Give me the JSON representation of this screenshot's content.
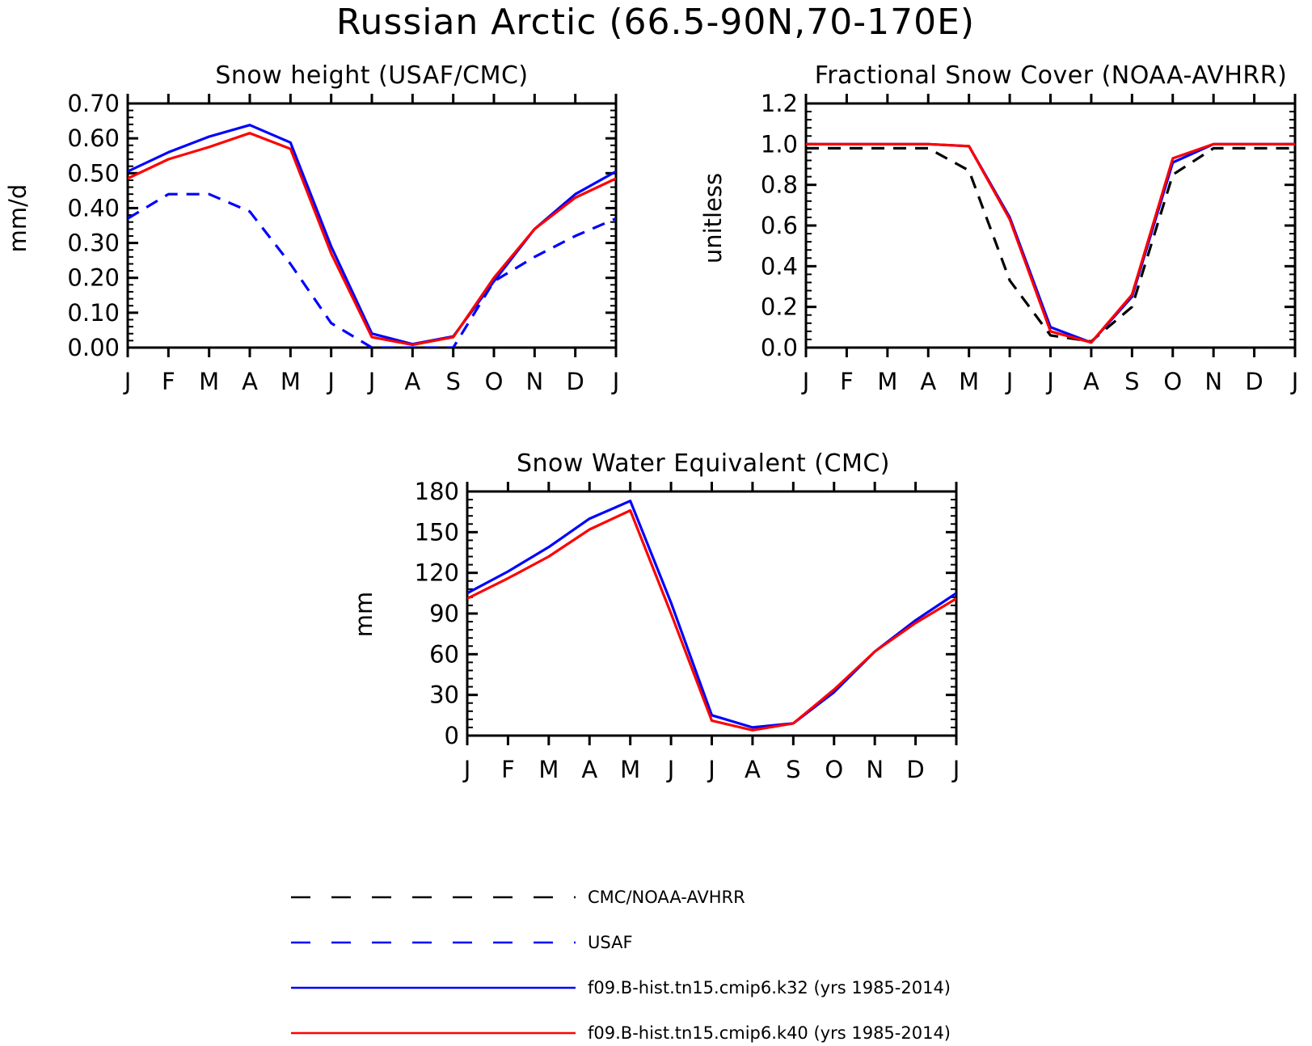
{
  "figure": {
    "title": "Russian Arctic (66.5-90N,70-170E)"
  },
  "legend": [
    {
      "label": "CMC/NOAA-AVHRR",
      "color": "#000000",
      "style": "dashed"
    },
    {
      "label": "USAF",
      "color": "#0000ff",
      "style": "dashed"
    },
    {
      "label": "f09.B-hist.tn15.cmip6.k32 (yrs 1985-2014)",
      "color": "#0000ff",
      "style": "solid"
    },
    {
      "label": "f09.B-hist.tn15.cmip6.k40 (yrs 1985-2014)",
      "color": "#ff0000",
      "style": "solid"
    }
  ],
  "chart_data": [
    {
      "type": "line",
      "title": "Snow height (USAF/CMC)",
      "xlabel": "",
      "ylabel": "mm/d",
      "categories": [
        "J",
        "F",
        "M",
        "A",
        "M",
        "J",
        "J",
        "A",
        "S",
        "O",
        "N",
        "D",
        "J"
      ],
      "ylim": [
        0,
        0.7
      ],
      "yticks": [
        "0.00",
        "0.10",
        "0.20",
        "0.30",
        "0.40",
        "0.50",
        "0.60",
        "0.70"
      ],
      "series": [
        {
          "name": "USAF",
          "color": "#0000ff",
          "style": "dashed",
          "values": [
            0.37,
            0.44,
            0.44,
            0.39,
            0.24,
            0.07,
            0.0,
            0.0,
            0.0,
            0.19,
            0.26,
            0.32,
            0.37
          ]
        },
        {
          "name": "f09.B-hist.tn15.cmip6.k32 (yrs 1985-2014)",
          "color": "#0000ff",
          "style": "solid",
          "values": [
            0.505,
            0.56,
            0.605,
            0.638,
            0.588,
            0.29,
            0.04,
            0.01,
            0.032,
            0.19,
            0.34,
            0.44,
            0.505
          ]
        },
        {
          "name": "f09.B-hist.tn15.cmip6.k40 (yrs 1985-2014)",
          "color": "#ff0000",
          "style": "solid",
          "values": [
            0.485,
            0.54,
            0.575,
            0.615,
            0.57,
            0.27,
            0.03,
            0.008,
            0.03,
            0.2,
            0.34,
            0.43,
            0.485
          ]
        }
      ]
    },
    {
      "type": "line",
      "title": "Fractional Snow Cover (NOAA-AVHRR)",
      "xlabel": "",
      "ylabel": "unitless",
      "categories": [
        "J",
        "F",
        "M",
        "A",
        "M",
        "J",
        "J",
        "A",
        "S",
        "O",
        "N",
        "D",
        "J"
      ],
      "ylim": [
        0,
        1.2
      ],
      "yticks": [
        "0.0",
        "0.2",
        "0.4",
        "0.6",
        "0.8",
        "1.0",
        "1.2"
      ],
      "series": [
        {
          "name": "CMC/NOAA-AVHRR",
          "color": "#000000",
          "style": "dashed",
          "values": [
            0.98,
            0.98,
            0.98,
            0.98,
            0.87,
            0.33,
            0.06,
            0.03,
            0.2,
            0.85,
            0.98,
            0.98,
            0.98
          ]
        },
        {
          "name": "f09.B-hist.tn15.cmip6.k32 (yrs 1985-2014)",
          "color": "#0000ff",
          "style": "solid",
          "values": [
            1.0,
            1.0,
            1.0,
            1.0,
            0.99,
            0.64,
            0.1,
            0.025,
            0.25,
            0.91,
            1.0,
            1.0,
            1.0
          ]
        },
        {
          "name": "f09.B-hist.tn15.cmip6.k40 (yrs 1985-2014)",
          "color": "#ff0000",
          "style": "solid",
          "values": [
            1.0,
            1.0,
            1.0,
            1.0,
            0.99,
            0.63,
            0.08,
            0.025,
            0.26,
            0.93,
            1.0,
            1.0,
            1.0
          ]
        }
      ]
    },
    {
      "type": "line",
      "title": "Snow Water Equivalent (CMC)",
      "xlabel": "",
      "ylabel": "mm",
      "categories": [
        "J",
        "F",
        "M",
        "A",
        "M",
        "J",
        "J",
        "A",
        "S",
        "O",
        "N",
        "D",
        "J"
      ],
      "ylim": [
        0,
        180
      ],
      "yticks": [
        "0",
        "30",
        "60",
        "90",
        "120",
        "150",
        "180"
      ],
      "series": [
        {
          "name": "f09.B-hist.tn15.cmip6.k32 (yrs 1985-2014)",
          "color": "#0000ff",
          "style": "solid",
          "values": [
            105,
            121,
            139,
            160,
            173,
            98,
            15,
            6,
            9,
            32,
            62,
            85,
            105
          ]
        },
        {
          "name": "f09.B-hist.tn15.cmip6.k40 (yrs 1985-2014)",
          "color": "#ff0000",
          "style": "solid",
          "values": [
            101,
            116,
            132,
            152,
            166,
            90,
            11,
            4,
            9,
            34,
            62,
            83,
            101
          ]
        }
      ]
    }
  ]
}
